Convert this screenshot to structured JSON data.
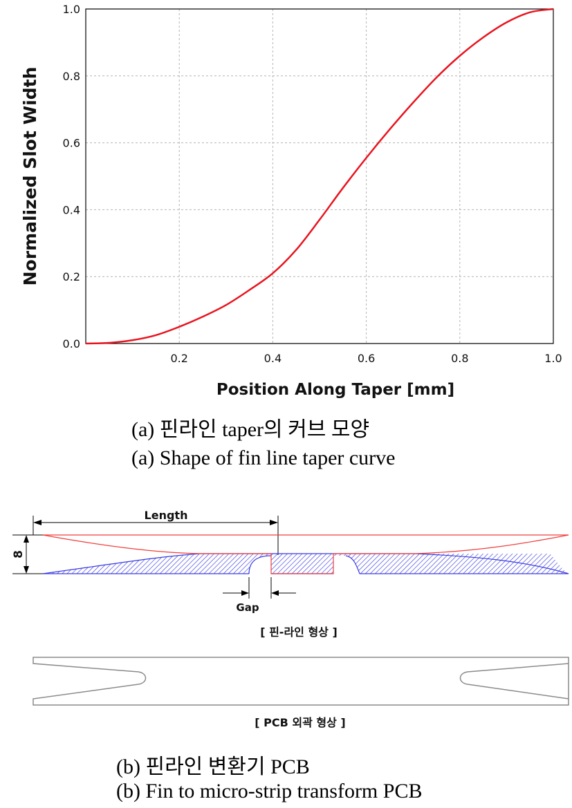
{
  "figure_a": {
    "caption_ko": "(a) 핀라인 taper의 커브 모양",
    "caption_en": "(a) Shape of fin line taper curve"
  },
  "figure_b": {
    "length_label": "Length",
    "height_label": "8",
    "gap_label": "Gap",
    "finline_title": "[ 핀-라인 형상 ]",
    "pcb_title": "[ PCB 외곽 형상 ]",
    "caption_ko": "(b) 핀라인 변환기 PCB",
    "caption_en": "(b) Fin to micro-strip transform PCB"
  },
  "colors": {
    "curve": "#e8141e",
    "fin_red": "#f03c3c",
    "fin_blue": "#3a3ae0",
    "outline": "#8a8a8a"
  },
  "chart_data": {
    "type": "line",
    "title": "",
    "xlabel": "Position Along Taper [mm]",
    "ylabel": "Normalized Slot Width",
    "xlim": [
      0.0,
      1.0
    ],
    "ylim": [
      0.0,
      1.0
    ],
    "xticks": [
      "0.2",
      "0.4",
      "0.6",
      "0.8",
      "1.0"
    ],
    "yticks": [
      "0.0",
      "0.2",
      "0.4",
      "0.6",
      "0.8",
      "1.0"
    ],
    "grid": true,
    "series": [
      {
        "x": [
          0.0,
          0.05,
          0.1,
          0.15,
          0.2,
          0.25,
          0.3,
          0.35,
          0.4,
          0.45,
          0.5,
          0.55,
          0.6,
          0.65,
          0.7,
          0.75,
          0.8,
          0.85,
          0.9,
          0.95,
          1.0
        ],
        "values": [
          0.0,
          0.002,
          0.01,
          0.025,
          0.05,
          0.08,
          0.115,
          0.16,
          0.21,
          0.28,
          0.37,
          0.465,
          0.555,
          0.64,
          0.72,
          0.795,
          0.86,
          0.915,
          0.96,
          0.99,
          1.0
        ]
      }
    ]
  }
}
